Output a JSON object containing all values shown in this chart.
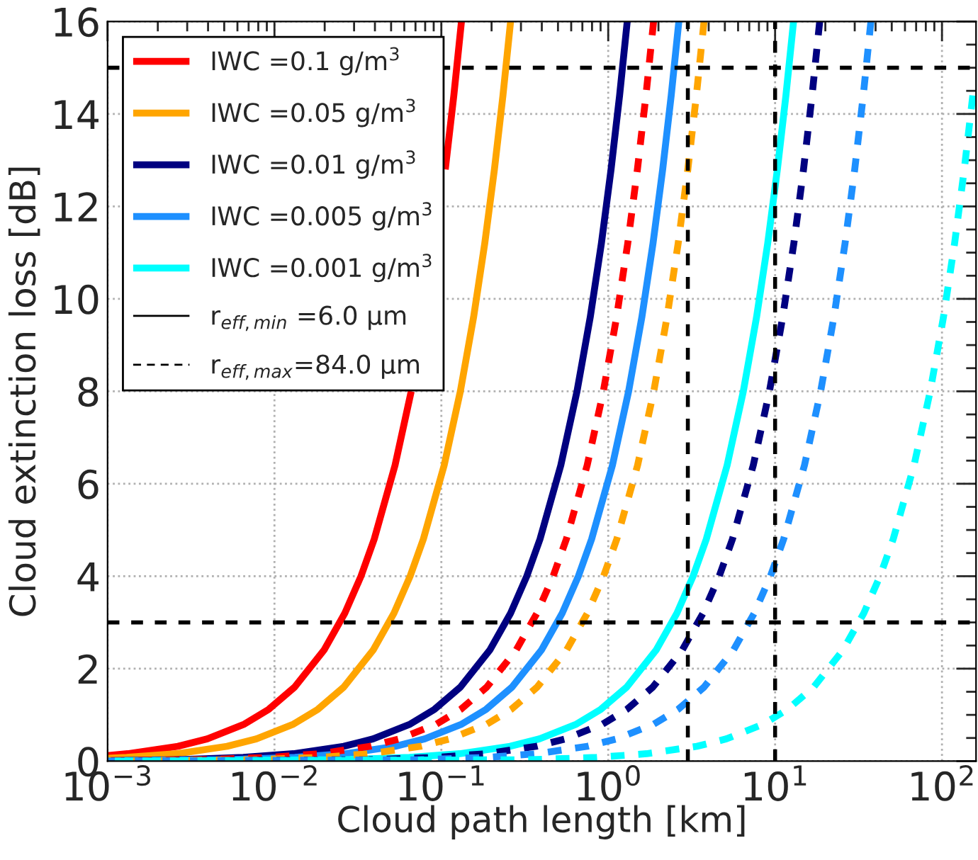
{
  "chart_data": {
    "type": "line",
    "xlabel": "Cloud path length [km]",
    "ylabel": "Cloud extinction loss [dB]",
    "log": "x",
    "xlim": [
      0.001,
      160
    ],
    "ylim": [
      0,
      16
    ],
    "xticks": [
      {
        "value": 0.001,
        "label": "10$^{−3}$"
      },
      {
        "value": 0.01,
        "label": "10$^{−2}$"
      },
      {
        "value": 0.1,
        "label": "10$^{−1}$"
      },
      {
        "value": 1,
        "label": "10$^{0}$"
      },
      {
        "value": 10,
        "label": "10$^{1}$"
      },
      {
        "value": 100,
        "label": "10$^{2}$"
      }
    ],
    "yticks": [
      0,
      2,
      4,
      6,
      8,
      10,
      12,
      14,
      16
    ],
    "grid": true,
    "legend": "top left",
    "series": [
      {
        "name": "IWC =0.1 g/m$^{3}$",
        "color": "#ff0000",
        "line_style": "solid",
        "x": [
          0.132,
          0.1188,
          0.1056,
          0.0924,
          0.0792,
          0.066,
          0.0528,
          0.0396,
          0.033,
          0.0264,
          0.0198,
          0.0132,
          0.00924,
          0.0066,
          0.00396,
          0.00264,
          0.00132,
          0.001
        ],
        "values": [
          16,
          14.4,
          12.8,
          null,
          null,
          8,
          6.4,
          4.8,
          4,
          3.2,
          2.4,
          1.6,
          1.12,
          0.8,
          0.48,
          0.32,
          0.16,
          0.12
        ]
      },
      {
        "name": "IWC =0.05 g/m$^{3}$",
        "color": "#ffa500",
        "line_style": "solid",
        "x": [
          0.26,
          0.234,
          0.208,
          0.182,
          0.156,
          0.13,
          0.104,
          0.078,
          0.065,
          0.052,
          0.039,
          0.026,
          0.0182,
          0.013,
          0.0078,
          0.0052,
          0.0026,
          0.0013,
          0.001
        ],
        "values": [
          16,
          14.4,
          12.8,
          11.2,
          9.6,
          8,
          6.4,
          4.8,
          4,
          3.2,
          2.4,
          1.6,
          1.12,
          0.8,
          0.48,
          0.32,
          0.16,
          0.08,
          0.06
        ]
      },
      {
        "name": "IWC =0.01 g/m$^{3}$",
        "color": "#000080",
        "line_style": "solid",
        "x": [
          1.3,
          1.17,
          1.04,
          0.91,
          0.78,
          0.65,
          0.52,
          0.39,
          0.325,
          0.26,
          0.195,
          0.13,
          0.091,
          0.065,
          0.039,
          0.026,
          0.013,
          0.0065,
          0.0026,
          0.001
        ],
        "values": [
          16,
          14.4,
          12.8,
          11.2,
          9.6,
          8,
          6.4,
          4.8,
          4,
          3.2,
          2.4,
          1.6,
          1.12,
          0.8,
          0.48,
          0.32,
          0.16,
          0.08,
          0.03,
          0.01
        ]
      },
      {
        "name": "IWC =0.005 g/m$^{3}$",
        "color": "#1e90ff",
        "line_style": "solid",
        "x": [
          2.65,
          2.385,
          2.12,
          1.855,
          1.59,
          1.325,
          1.06,
          0.795,
          0.6625,
          0.53,
          0.3975,
          0.265,
          0.1855,
          0.1325,
          0.0795,
          0.053,
          0.0265,
          0.01325,
          0.0053,
          0.001
        ],
        "values": [
          16,
          14.4,
          12.8,
          11.2,
          9.6,
          8,
          6.4,
          4.8,
          4,
          3.2,
          2.4,
          1.6,
          1.12,
          0.8,
          0.48,
          0.32,
          0.16,
          0.08,
          0.03,
          0.01
        ]
      },
      {
        "name": "IWC =0.001 g/m$^{3}$",
        "color": "#00ffff",
        "line_style": "solid",
        "x": [
          12.9,
          11.61,
          10.32,
          9.03,
          7.74,
          6.45,
          5.16,
          3.87,
          3.225,
          2.58,
          1.935,
          1.29,
          0.903,
          0.645,
          0.387,
          0.258,
          0.129,
          0.0645,
          0.0258,
          0.001
        ],
        "values": [
          16,
          14.4,
          12.8,
          11.2,
          9.6,
          8,
          6.4,
          4.8,
          4,
          3.2,
          2.4,
          1.6,
          1.12,
          0.8,
          0.48,
          0.32,
          0.16,
          0.08,
          0.03,
          0
        ]
      },
      {
        "color": "#ff0000",
        "line_style": "dashed",
        "x": [
          1.87,
          1.683,
          1.496,
          1.309,
          1.122,
          0.935,
          0.748,
          0.561,
          0.4675,
          0.374,
          0.2805,
          0.187,
          0.1309,
          0.0935,
          0.0561,
          0.0374,
          0.0187,
          0.00935,
          0.00374,
          0.001
        ],
        "values": [
          16,
          14.4,
          12.8,
          11.2,
          9.6,
          8,
          6.4,
          4.8,
          4,
          3.2,
          2.4,
          1.6,
          1.12,
          0.8,
          0.48,
          0.32,
          0.16,
          0.08,
          0.03,
          0.01
        ]
      },
      {
        "color": "#ffa500",
        "line_style": "dashed",
        "x": [
          3.75,
          3.375,
          3.0,
          2.625,
          2.25,
          1.875,
          1.5,
          1.125,
          0.9375,
          0.75,
          0.5625,
          0.375,
          0.2625,
          0.1875,
          0.1125,
          0.075,
          0.0375,
          0.01875,
          0.0075,
          0.001
        ],
        "values": [
          16,
          14.4,
          12.8,
          11.2,
          9.6,
          8,
          6.4,
          4.8,
          4,
          3.2,
          2.4,
          1.6,
          1.12,
          0.8,
          0.48,
          0.32,
          0.16,
          0.08,
          0.03,
          0
        ]
      },
      {
        "color": "#000080",
        "line_style": "dashed",
        "x": [
          18.5,
          16.65,
          14.8,
          12.95,
          11.1,
          9.25,
          7.4,
          5.55,
          4.625,
          3.7,
          2.775,
          1.85,
          1.295,
          0.925,
          0.555,
          0.37,
          0.185,
          0.0925,
          0.037,
          0.001
        ],
        "values": [
          16,
          14.4,
          12.8,
          11.2,
          9.6,
          8,
          6.4,
          4.8,
          4,
          3.2,
          2.4,
          1.6,
          1.12,
          0.8,
          0.48,
          0.32,
          0.16,
          0.08,
          0.03,
          0
        ]
      },
      {
        "color": "#1e90ff",
        "line_style": "dashed",
        "x": [
          37.5,
          33.75,
          30,
          26.25,
          22.5,
          18.75,
          15,
          11.25,
          9.375,
          7.5,
          5.625,
          3.75,
          2.625,
          1.875,
          1.125,
          0.75,
          0.375,
          0.1875,
          0.075,
          0.001
        ],
        "values": [
          16,
          14.4,
          12.8,
          11.2,
          9.6,
          8,
          6.4,
          4.8,
          4,
          3.2,
          2.4,
          1.6,
          1.12,
          0.8,
          0.48,
          0.32,
          0.16,
          0.08,
          0.03,
          0
        ]
      },
      {
        "color": "#00ffff",
        "line_style": "dashed",
        "x": [
          153,
          136,
          119,
          102,
          85,
          68,
          51,
          42.5,
          34,
          25.5,
          17,
          11.9,
          8.5,
          5.1,
          3.4,
          1.7,
          0.85,
          0.34,
          0.001
        ],
        "values": [
          14.4,
          12.8,
          11.2,
          9.6,
          8,
          6.4,
          4.8,
          4,
          3.2,
          2.4,
          1.6,
          1.12,
          0.8,
          0.48,
          0.32,
          0.16,
          0.08,
          0.03,
          0
        ]
      },
      {
        "name": "r$_{eff,min}$ =6.0 μm",
        "color": "#000000",
        "line_style": "solid"
      },
      {
        "name": "r$_{eff,max}$=84.0 μm",
        "color": "#000000",
        "line_style": "dashed"
      }
    ],
    "ref_lines": [
      {
        "axis": "y",
        "value": 15,
        "color": "#000000",
        "line_style": "dashed"
      },
      {
        "axis": "y",
        "value": 3,
        "color": "#000000",
        "line_style": "dashed"
      },
      {
        "axis": "x",
        "value": 3,
        "color": "#000000",
        "line_style": "dashed"
      },
      {
        "axis": "x",
        "value": 10,
        "color": "#000000",
        "line_style": "dashed"
      }
    ]
  }
}
